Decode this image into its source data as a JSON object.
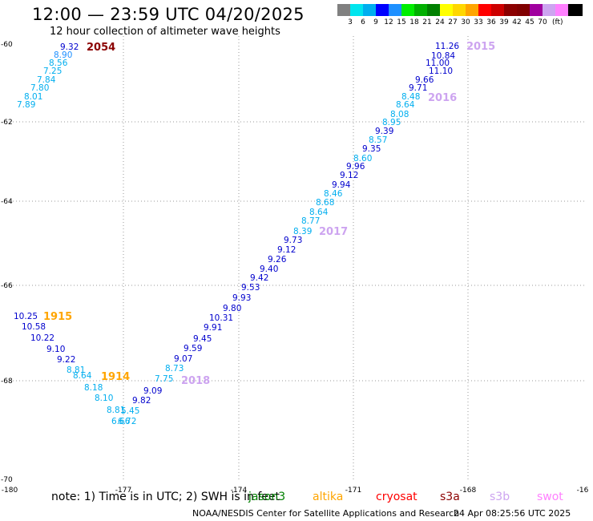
{
  "header": {
    "title": "12:00 — 23:59 UTC 04/20/2025",
    "subtitle": "12 hour collection of altimeter wave heights"
  },
  "legend": {
    "colors": [
      "#808080",
      "#00e5ee",
      "#00aeef",
      "#0000ff",
      "#1e90ff",
      "#00ee00",
      "#00b000",
      "#008000",
      "#ffff00",
      "#ffd700",
      "#ffa500",
      "#ff0000",
      "#cd0000",
      "#8b0000",
      "#800000",
      "#a0009f",
      "#cda4f0",
      "#ff80ff",
      "#000000"
    ],
    "labels": [
      "3",
      "6",
      "9",
      "12",
      "15",
      "18",
      "21",
      "24",
      "27",
      "30",
      "33",
      "36",
      "39",
      "42",
      "45",
      "70"
    ],
    "unit": "(ft)"
  },
  "axes": {
    "x_ticks": [
      "-180",
      "-177",
      "-174",
      "-171",
      "-168",
      "-16"
    ],
    "y_ticks": [
      "-60",
      "-62",
      "-64",
      "-66",
      "-68",
      "-70"
    ]
  },
  "map": {
    "passes": [
      {
        "label": "2054",
        "color": "#8b0000"
      },
      {
        "label": "2015",
        "color": "#cda4f0"
      },
      {
        "label": "2016",
        "color": "#cda4f0"
      },
      {
        "label": "2017",
        "color": "#cda4f0"
      },
      {
        "label": "1915",
        "color": "#ffa500"
      },
      {
        "label": "1914",
        "color": "#ffa500"
      },
      {
        "label": "2018",
        "color": "#cda4f0"
      }
    ],
    "values": [
      {
        "v": "9.32",
        "c": "#0000cd"
      },
      {
        "v": "8.90",
        "c": "#1e90ff"
      },
      {
        "v": "8.56",
        "c": "#00aeef"
      },
      {
        "v": "7.25",
        "c": "#00aeef"
      },
      {
        "v": "7.84",
        "c": "#00aeef"
      },
      {
        "v": "7.80",
        "c": "#00aeef"
      },
      {
        "v": "8.01",
        "c": "#00aeef"
      },
      {
        "v": "7.89",
        "c": "#00aeef"
      },
      {
        "v": "11.26",
        "c": "#0000cd"
      },
      {
        "v": "10.84",
        "c": "#0000cd"
      },
      {
        "v": "11.00",
        "c": "#0000cd"
      },
      {
        "v": "11.10",
        "c": "#0000cd"
      },
      {
        "v": "9.66",
        "c": "#0000cd"
      },
      {
        "v": "9.71",
        "c": "#0000cd"
      },
      {
        "v": "8.48",
        "c": "#00aeef"
      },
      {
        "v": "8.64",
        "c": "#00aeef"
      },
      {
        "v": "8.08",
        "c": "#00aeef"
      },
      {
        "v": "8.95",
        "c": "#00aeef"
      },
      {
        "v": "9.39",
        "c": "#0000cd"
      },
      {
        "v": "8.57",
        "c": "#00aeef"
      },
      {
        "v": "9.35",
        "c": "#0000cd"
      },
      {
        "v": "8.60",
        "c": "#00aeef"
      },
      {
        "v": "9.96",
        "c": "#0000cd"
      },
      {
        "v": "9.12",
        "c": "#0000cd"
      },
      {
        "v": "9.94",
        "c": "#0000cd"
      },
      {
        "v": "8.46",
        "c": "#00aeef"
      },
      {
        "v": "8.68",
        "c": "#00aeef"
      },
      {
        "v": "8.64",
        "c": "#00aeef"
      },
      {
        "v": "8.77",
        "c": "#00aeef"
      },
      {
        "v": "8.39",
        "c": "#00aeef"
      },
      {
        "v": "9.73",
        "c": "#0000cd"
      },
      {
        "v": "9.12",
        "c": "#0000cd"
      },
      {
        "v": "9.26",
        "c": "#0000cd"
      },
      {
        "v": "9.40",
        "c": "#0000cd"
      },
      {
        "v": "9.42",
        "c": "#0000cd"
      },
      {
        "v": "9.53",
        "c": "#0000cd"
      },
      {
        "v": "9.93",
        "c": "#0000cd"
      },
      {
        "v": "9.80",
        "c": "#0000cd"
      },
      {
        "v": "10.31",
        "c": "#0000cd"
      },
      {
        "v": "9.91",
        "c": "#0000cd"
      },
      {
        "v": "9.45",
        "c": "#0000cd"
      },
      {
        "v": "9.59",
        "c": "#0000cd"
      },
      {
        "v": "9.07",
        "c": "#0000cd"
      },
      {
        "v": "8.73",
        "c": "#00aeef"
      },
      {
        "v": "7.75",
        "c": "#00aeef"
      },
      {
        "v": "9.09",
        "c": "#0000cd"
      },
      {
        "v": "9.82",
        "c": "#0000cd"
      },
      {
        "v": "5.45",
        "c": "#00aeef"
      },
      {
        "v": "6.72",
        "c": "#00aeef"
      },
      {
        "v": "10.25",
        "c": "#0000cd"
      },
      {
        "v": "10.58",
        "c": "#0000cd"
      },
      {
        "v": "10.22",
        "c": "#0000cd"
      },
      {
        "v": "9.10",
        "c": "#0000cd"
      },
      {
        "v": "9.22",
        "c": "#0000cd"
      },
      {
        "v": "8.81",
        "c": "#00aeef"
      },
      {
        "v": "8.64",
        "c": "#00aeef"
      },
      {
        "v": "8.18",
        "c": "#00aeef"
      },
      {
        "v": "8.10",
        "c": "#00aeef"
      },
      {
        "v": "8.81",
        "c": "#00aeef"
      },
      {
        "v": "6.66",
        "c": "#00aeef"
      }
    ]
  },
  "footer": {
    "note": "note:  1) Time is in UTC; 2) SWH is in feet",
    "satellites": [
      {
        "name": "jason3",
        "color": "#008000"
      },
      {
        "name": "altika",
        "color": "#ffa500"
      },
      {
        "name": "cryosat",
        "color": "#ff0000"
      },
      {
        "name": "s3a",
        "color": "#8b0000"
      },
      {
        "name": "s3b",
        "color": "#cda4f0"
      },
      {
        "name": "swot",
        "color": "#ff80ff"
      }
    ],
    "credit": "NOAA/NESDIS Center for Satellite Applications and Research",
    "timestamp": "24 Apr 08:25:56 UTC 2025"
  }
}
